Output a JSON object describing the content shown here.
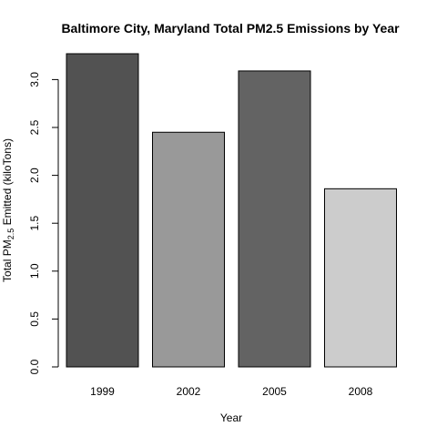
{
  "chart_data": {
    "type": "bar",
    "title": "Baltimore City, Maryland Total PM2.5 Emissions by Year",
    "xlabel": "Year",
    "ylabel": {
      "prefix": "Total PM",
      "subscript": "2.5",
      "suffix": " Emitted (kiloTons)"
    },
    "categories": [
      "1999",
      "2002",
      "2005",
      "2008"
    ],
    "values": [
      3.27,
      2.45,
      3.09,
      1.86
    ],
    "bar_colors": [
      "#525252",
      "#999999",
      "#636363",
      "#cccccc"
    ],
    "ylim": [
      0,
      3.27
    ],
    "yticks": [
      {
        "value": 0.0,
        "label": "0.0"
      },
      {
        "value": 0.5,
        "label": "0.5"
      },
      {
        "value": 1.0,
        "label": "1.0"
      },
      {
        "value": 1.5,
        "label": "1.5"
      },
      {
        "value": 2.0,
        "label": "2.0"
      },
      {
        "value": 2.5,
        "label": "2.5"
      },
      {
        "value": 3.0,
        "label": "3.0"
      }
    ],
    "grid": false,
    "legend": "none"
  }
}
